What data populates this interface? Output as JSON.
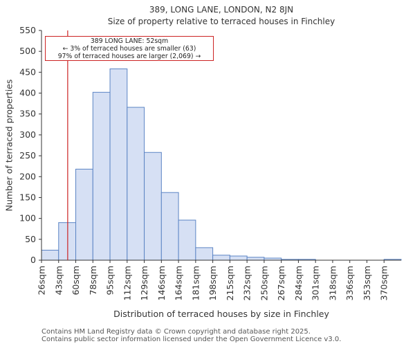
{
  "header": {
    "title_line1": "389, LONG LANE, LONDON, N2 8JN",
    "title_line2": "Size of property relative to terraced houses in Finchley"
  },
  "annotation": {
    "line1": "389 LONG LANE: 52sqm",
    "line2": "← 3% of terraced houses are smaller (63)",
    "line3": "97% of terraced houses are larger (2,069) →"
  },
  "footer": {
    "line1": "Contains HM Land Registry data © Crown copyright and database right 2025.",
    "line2": "Contains public sector information licensed under the Open Government Licence v3.0."
  },
  "colors": {
    "bar_fill": "#d6e0f4",
    "bar_stroke": "#5b84c4",
    "marker": "#cc2222",
    "axis": "#333333"
  },
  "chart_data": {
    "type": "bar",
    "title": "Size of property relative to terraced houses in Finchley",
    "xlabel": "Distribution of terraced houses by size in Finchley",
    "ylabel": "Number of terraced properties",
    "categories": [
      "26sqm",
      "43sqm",
      "60sqm",
      "78sqm",
      "95sqm",
      "112sqm",
      "129sqm",
      "146sqm",
      "164sqm",
      "181sqm",
      "198sqm",
      "215sqm",
      "232sqm",
      "250sqm",
      "267sqm",
      "284sqm",
      "301sqm",
      "318sqm",
      "336sqm",
      "353sqm",
      "370sqm"
    ],
    "values": [
      24,
      90,
      218,
      402,
      458,
      366,
      258,
      162,
      96,
      30,
      12,
      10,
      7,
      5,
      2,
      2,
      0,
      0,
      0,
      0,
      2
    ],
    "ylim": [
      0,
      550
    ],
    "yticks": [
      0,
      50,
      100,
      150,
      200,
      250,
      300,
      350,
      400,
      450,
      500,
      550
    ],
    "marker": {
      "value_sqm": 52,
      "label": "389 LONG LANE: 52sqm"
    }
  }
}
